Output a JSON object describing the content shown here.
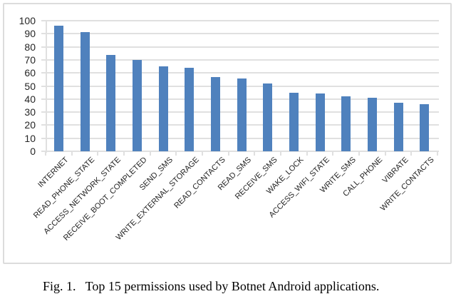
{
  "figure": {
    "caption": "Fig. 1.   Top 15 permissions used by Botnet Android applications."
  },
  "chart_data": {
    "type": "bar",
    "title": "",
    "xlabel": "",
    "ylabel": "",
    "categories": [
      "INTERNET",
      "READ_PHONE_STATE",
      "ACCESS_NETWORK_STATE",
      "RECEIVE_BOOT_COMPLETED",
      "SEND_SMS",
      "WRITE_EXTERNAL_STORAGE",
      "READ_CONTACTS",
      "READ_SMS",
      "RECEIVE_SMS",
      "WAKE_LOCK",
      "ACCESS_WIFI_STATE",
      "WRITE_SMS",
      "CALL_PHONE",
      "VIBRATE",
      "WRITE_CONTACTS"
    ],
    "values": [
      96,
      91,
      74,
      70,
      65,
      64,
      57,
      56,
      52,
      45,
      44,
      42,
      41,
      37,
      36
    ],
    "ylim": [
      0,
      100
    ],
    "yticks": [
      0,
      10,
      20,
      30,
      40,
      50,
      60,
      70,
      80,
      90,
      100
    ],
    "grid": true,
    "legend": "none",
    "colors": {
      "bar": "#4F81BD",
      "gridline": "#e0e0e0",
      "frame_border": "#dcdcdc",
      "axis_text": "#262626",
      "caption_text": "#000000"
    }
  }
}
